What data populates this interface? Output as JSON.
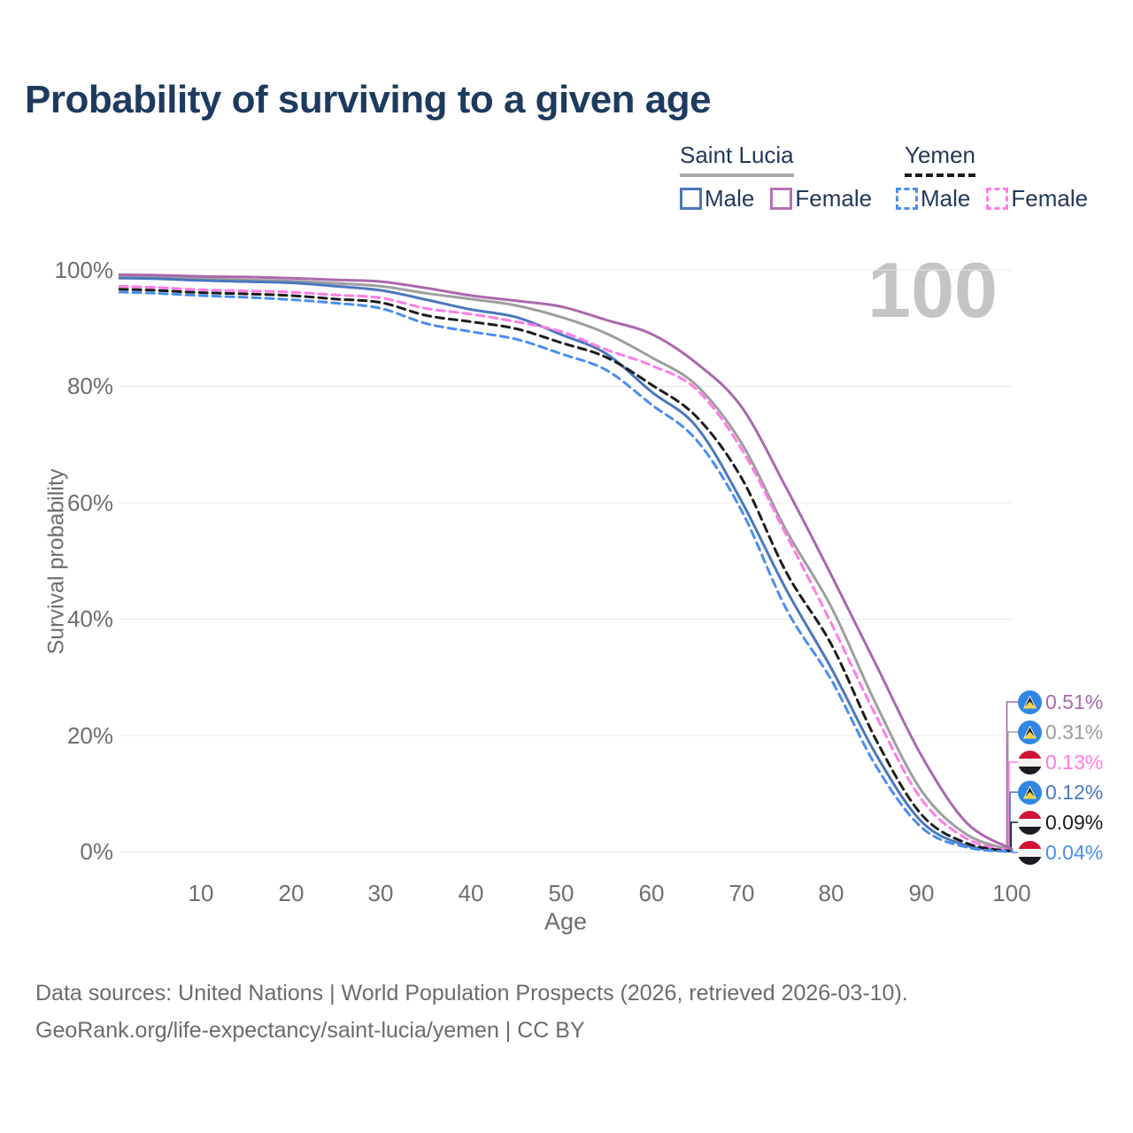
{
  "title": "Probability of surviving to a given age",
  "watermark": "100",
  "legend": {
    "groups": [
      {
        "label": "Saint Lucia",
        "line": {
          "color": "#a8a8a8",
          "dashed": false
        },
        "items": [
          {
            "label": "Male",
            "color": "#4a77bd",
            "dashed": false
          },
          {
            "label": "Female",
            "color": "#b66fb8",
            "dashed": false
          }
        ]
      },
      {
        "label": "Yemen",
        "line": {
          "color": "#1c1c1c",
          "dashed": true
        },
        "items": [
          {
            "label": "Male",
            "color": "#4a8ef0",
            "dashed": true
          },
          {
            "label": "Female",
            "color": "#ff7ce6",
            "dashed": true
          }
        ]
      }
    ]
  },
  "axes": {
    "y_label": "Survival probability",
    "x_label": "Age",
    "y_ticks": [
      "100%",
      "80%",
      "60%",
      "40%",
      "20%",
      "0%"
    ],
    "x_ticks": [
      "10",
      "20",
      "30",
      "40",
      "50",
      "60",
      "70",
      "80",
      "90",
      "100"
    ]
  },
  "footer": {
    "line1": "Data sources: United Nations | World Population Prospects (2026, retrieved 2026-03-10).",
    "line2": "GeoRank.org/life-expectancy/saint-lucia/yemen | CC BY"
  },
  "chart_data": {
    "type": "line",
    "title": "Probability of surviving to a given age",
    "xlabel": "Age",
    "ylabel": "Survival probability",
    "xlim": [
      0,
      100
    ],
    "ylim": [
      0,
      100
    ],
    "grid": true,
    "legend_position": "top-right",
    "ages": [
      1,
      5,
      10,
      15,
      20,
      25,
      30,
      35,
      40,
      45,
      50,
      55,
      60,
      65,
      70,
      75,
      80,
      85,
      90,
      95,
      100
    ],
    "series": [
      {
        "name": "Saint Lucia Female",
        "country": "Saint Lucia",
        "sex": "female",
        "color": "#ab68ad",
        "dashed": false,
        "end_label": "0.51%",
        "end_value_pct": 0.51,
        "values": [
          99.2,
          99.1,
          98.9,
          98.8,
          98.6,
          98.3,
          98.0,
          96.9,
          95.6,
          94.7,
          93.7,
          91.4,
          89.0,
          84.0,
          76.5,
          62.5,
          47.5,
          32.0,
          16.5,
          5.0,
          0.51
        ]
      },
      {
        "name": "Saint Lucia",
        "country": "Saint Lucia",
        "sex": "all",
        "color": "#9e9e9e",
        "dashed": false,
        "end_label": "0.31%",
        "end_value_pct": 0.31,
        "values": [
          98.9,
          98.8,
          98.5,
          98.3,
          98.1,
          97.7,
          97.2,
          96.0,
          95.0,
          93.9,
          91.9,
          89.1,
          85.0,
          80.2,
          70.3,
          55.2,
          42.0,
          25.2,
          10.5,
          3.0,
          0.31
        ]
      },
      {
        "name": "Yemen Female",
        "country": "Yemen",
        "sex": "female",
        "color": "#ff7ce6",
        "dashed": true,
        "end_label": "0.13%",
        "end_value_pct": 0.13,
        "values": [
          97.2,
          97.0,
          96.6,
          96.4,
          96.2,
          95.7,
          95.2,
          93.4,
          92.4,
          91.1,
          89.4,
          86.3,
          83.6,
          79.5,
          69.3,
          54.4,
          39.2,
          23.2,
          9.0,
          2.3,
          0.13
        ]
      },
      {
        "name": "Saint Lucia Male",
        "country": "Saint Lucia",
        "sex": "male",
        "color": "#4a77bd",
        "dashed": false,
        "end_label": "0.12%",
        "end_value_pct": 0.12,
        "values": [
          98.6,
          98.5,
          98.2,
          98.0,
          97.8,
          97.2,
          96.5,
          94.9,
          93.2,
          91.9,
          88.9,
          85.6,
          79.1,
          73.1,
          60.3,
          45.0,
          31.5,
          16.6,
          5.2,
          1.1,
          0.12
        ]
      },
      {
        "name": "Yemen",
        "country": "Yemen",
        "sex": "all",
        "color": "#1c1c1c",
        "dashed": true,
        "end_label": "0.09%",
        "end_value_pct": 0.09,
        "values": [
          96.7,
          96.5,
          96.1,
          95.9,
          95.6,
          95.0,
          94.4,
          92.2,
          91.1,
          89.9,
          87.5,
          85.0,
          80.3,
          74.8,
          64.3,
          48.0,
          35.6,
          19.1,
          6.4,
          1.5,
          0.09
        ]
      },
      {
        "name": "Yemen Male",
        "country": "Yemen",
        "sex": "male",
        "color": "#4a8ef0",
        "dashed": true,
        "end_label": "0.04%",
        "end_value_pct": 0.04,
        "values": [
          96.2,
          96.0,
          95.6,
          95.3,
          94.9,
          94.3,
          93.4,
          90.8,
          89.4,
          88.1,
          85.6,
          82.8,
          76.9,
          70.8,
          58.7,
          41.7,
          29.5,
          14.6,
          4.2,
          0.8,
          0.04
        ]
      }
    ]
  }
}
